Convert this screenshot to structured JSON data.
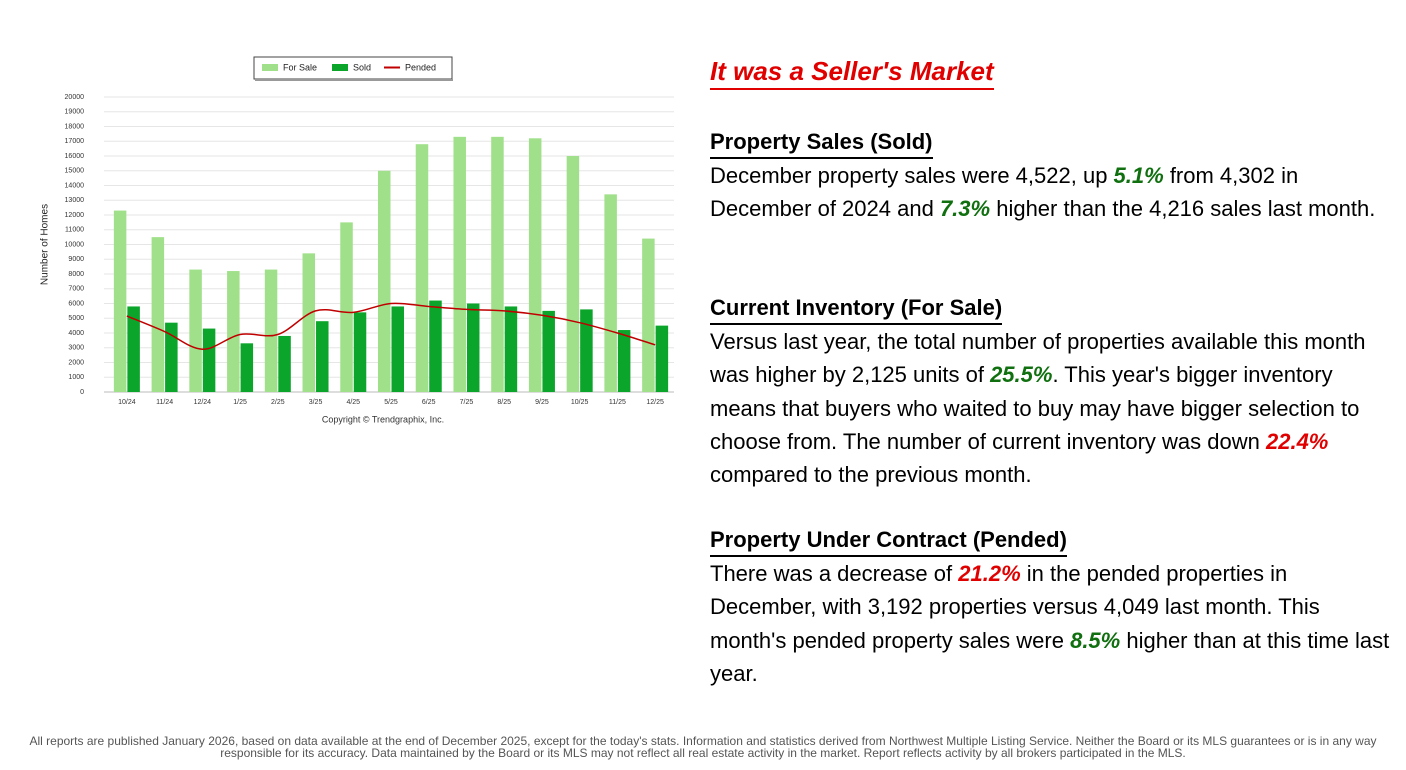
{
  "chart_data": {
    "type": "bar_line",
    "categories": [
      "10/24",
      "11/24",
      "12/24",
      "1/25",
      "2/25",
      "3/25",
      "4/25",
      "5/25",
      "6/25",
      "7/25",
      "8/25",
      "9/25",
      "10/25",
      "11/25",
      "12/25"
    ],
    "series": [
      {
        "name": "For Sale",
        "color": "#a0e08a",
        "kind": "bar",
        "values": [
          12300,
          10500,
          8300,
          8200,
          8300,
          9400,
          11500,
          15000,
          16800,
          17300,
          17300,
          17200,
          16000,
          13400,
          10400
        ]
      },
      {
        "name": "Sold",
        "color": "#0aa52a",
        "kind": "bar",
        "values": [
          5800,
          4700,
          4300,
          3300,
          3800,
          4800,
          5400,
          5800,
          6200,
          6000,
          5800,
          5500,
          5600,
          4200,
          4500
        ]
      },
      {
        "name": "Pended",
        "color": "#c00000",
        "kind": "line",
        "values": [
          5150,
          4100,
          2900,
          3900,
          3900,
          5500,
          5400,
          6000,
          5800,
          5600,
          5500,
          5200,
          4700,
          4000,
          3200
        ]
      }
    ],
    "y_label": "Number of Homes",
    "ylim": [
      0,
      20000
    ],
    "yticks": [
      0,
      1000,
      2000,
      3000,
      4000,
      5000,
      6000,
      7000,
      8000,
      9000,
      10000,
      11000,
      12000,
      13000,
      14000,
      15000,
      16000,
      17000,
      18000,
      19000,
      20000
    ],
    "grid": true,
    "legend": "top",
    "copyright": "Copyright © Trendgraphix, Inc."
  },
  "title": "It was a Seller's Market",
  "sections": [
    {
      "heading": "Property Sales (Sold)",
      "segments": [
        {
          "text": "December property sales were 4,522, up "
        },
        {
          "text": "5.1%",
          "emphasis": true,
          "color": "#107010"
        },
        {
          "text": " from 4,302 in December of 2024 and "
        },
        {
          "text": "7.3%",
          "emphasis": true,
          "color": "#107010"
        },
        {
          "text": " higher than the 4,216 sales last month."
        }
      ]
    },
    {
      "heading": "Current Inventory (For Sale)",
      "segments": [
        {
          "text": "Versus last year, the total number of properties available this month was higher by 2,125 units of "
        },
        {
          "text": "25.5%",
          "emphasis": true,
          "color": "#107010"
        },
        {
          "text": ". This year's bigger inventory means that buyers who waited to buy may have bigger selection to choose from. The number of current inventory was down "
        },
        {
          "text": "22.4%",
          "emphasis": true,
          "color": "#e00000"
        },
        {
          "text": " compared to the previous month."
        }
      ]
    },
    {
      "heading": "Property Under Contract (Pended)",
      "segments": [
        {
          "text": "There was a decrease of "
        },
        {
          "text": "21.2%",
          "emphasis": true,
          "color": "#e00000"
        },
        {
          "text": " in the pended properties in December, with 3,192 properties versus 4,049 last month. This month's pended property sales were "
        },
        {
          "text": "8.5%",
          "emphasis": true,
          "color": "#107010"
        },
        {
          "text": " higher than at this time last year."
        }
      ]
    }
  ],
  "footer": [
    "All reports are published January 2026, based on data available at the end of December 2025, except for the today's stats. Information and statistics derived from Northwest Multiple Listing Service. Neither the Board or its MLS guarantees or is in any way",
    "responsible for its accuracy. Data maintained by the Board or its MLS may not reflect all real estate activity in the market. Report reflects activity by all brokers participated in the MLS."
  ]
}
